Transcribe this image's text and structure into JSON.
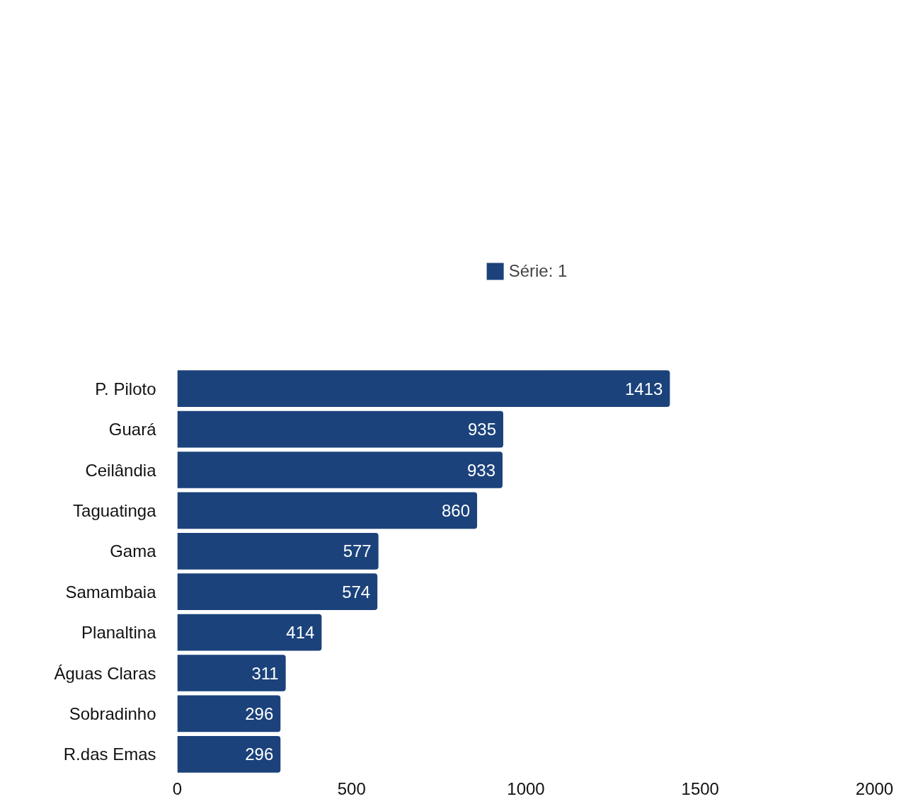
{
  "chart_data": {
    "type": "bar",
    "orientation": "horizontal",
    "categories": [
      "P. Piloto",
      "Guará",
      "Ceilândia",
      "Taguatinga",
      "Gama",
      "Samambaia",
      "Planaltina",
      "Águas Claras",
      "Sobradinho",
      "R.das Emas"
    ],
    "series": [
      {
        "name": "Série: 1",
        "color": "#1b427b",
        "values": [
          1413,
          935,
          933,
          860,
          577,
          574,
          414,
          311,
          296,
          296
        ]
      }
    ],
    "xlim": [
      0,
      2000
    ],
    "xticks": [
      0,
      500,
      1000,
      1500,
      2000
    ],
    "data_labels": true,
    "legend": "top",
    "grid": false
  }
}
